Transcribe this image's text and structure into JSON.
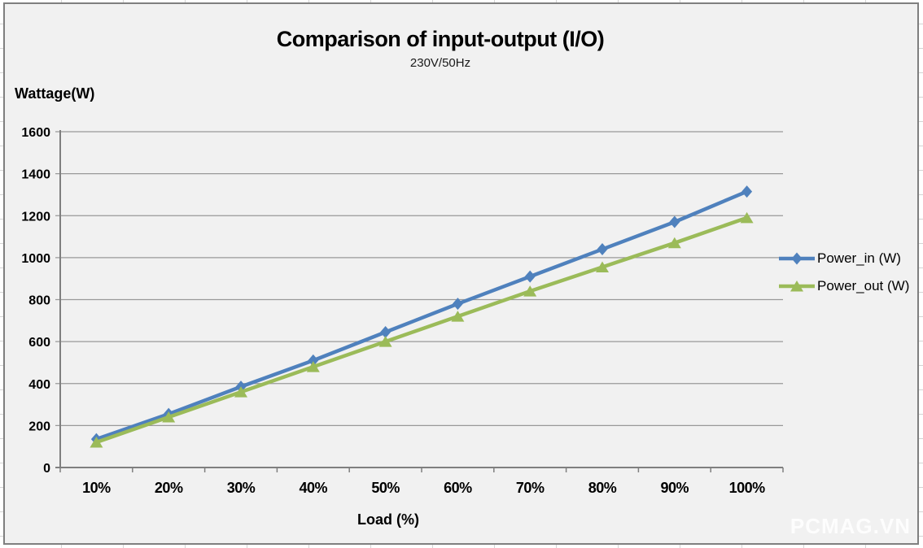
{
  "chart_data": {
    "type": "line",
    "title": "Comparison of input-output (I/O)",
    "subtitle": "230V/50Hz",
    "xlabel": "Load (%)",
    "ylabel": "Wattage(W)",
    "categories": [
      "10%",
      "20%",
      "30%",
      "40%",
      "50%",
      "60%",
      "70%",
      "80%",
      "90%",
      "100%"
    ],
    "series": [
      {
        "name": "Power_in (W)",
        "color": "#4F81BD",
        "marker": "diamond",
        "values": [
          135,
          255,
          385,
          510,
          645,
          780,
          910,
          1040,
          1170,
          1315
        ]
      },
      {
        "name": "Power_out (W)",
        "color": "#9BBB59",
        "marker": "triangle",
        "values": [
          120,
          240,
          360,
          480,
          600,
          720,
          840,
          955,
          1070,
          1190
        ]
      }
    ],
    "ylim": [
      0,
      1600
    ],
    "yticks": [
      0,
      200,
      400,
      600,
      800,
      1000,
      1200,
      1400,
      1600
    ],
    "grid": true,
    "legend_position": "right"
  },
  "watermark": "PCMAG.VN",
  "colors": {
    "chart_background": "#F1F1F1",
    "gridline": "#999999",
    "axis": "#7F7F7F",
    "text": "#000000",
    "watermark": "#FAFAFA"
  }
}
